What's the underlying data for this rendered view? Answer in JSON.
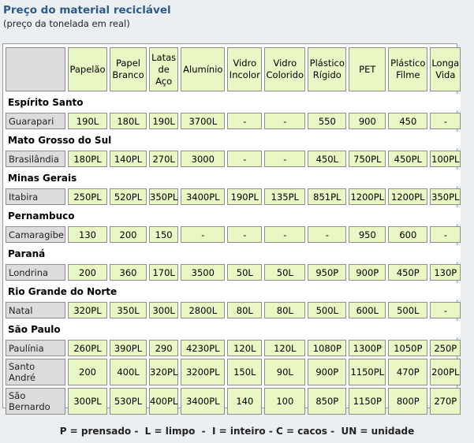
{
  "title": "Preço do material reciclável",
  "subtitle": "(preço da tonelada em real)",
  "columns": [
    "",
    "Papelão",
    "Papel\nBranco",
    "Latas\nde\nAço",
    "Alumínio",
    "Vidro\nIncolor",
    "Vidro\nColorido",
    "Plástico\nRígido",
    "PET",
    "Plástico\nFilme",
    "Longa\nVida"
  ],
  "groups": [
    {
      "state": "Espírito Santo",
      "rows": [
        {
          "city": "Guarapari",
          "values": [
            "190L",
            "180L",
            "190L",
            "3700L",
            "-",
            "-",
            "550",
            "900",
            "450",
            "-"
          ]
        }
      ]
    },
    {
      "state": "Mato Grosso do Sul",
      "rows": [
        {
          "city": "Brasilândia",
          "values": [
            "180PL",
            "140PL",
            "270L",
            "3000",
            "-",
            "-",
            "450L",
            "750PL",
            "450PL",
            "100PL"
          ]
        }
      ]
    },
    {
      "state": "Minas Gerais",
      "rows": [
        {
          "city": "Itabira",
          "values": [
            "250PL",
            "520PL",
            "350PL",
            "3400PL",
            "190PL",
            "135PL",
            "851PL",
            "1200PL",
            "1200PL",
            "350PL"
          ]
        }
      ]
    },
    {
      "state": "Pernambuco",
      "rows": [
        {
          "city": "Camaragibe",
          "values": [
            "130",
            "200",
            "150",
            "-",
            "-",
            "-",
            "-",
            "950",
            "600",
            "-"
          ]
        }
      ]
    },
    {
      "state": "Paraná",
      "rows": [
        {
          "city": "Londrina",
          "values": [
            "200",
            "360",
            "170L",
            "3500",
            "50L",
            "50L",
            "950P",
            "900P",
            "450P",
            "130P"
          ]
        }
      ]
    },
    {
      "state": "Rio Grande do Norte",
      "rows": [
        {
          "city": "Natal",
          "values": [
            "320PL",
            "350L",
            "300L",
            "2800L",
            "80L",
            "80L",
            "500L",
            "600L",
            "500L",
            "-"
          ]
        }
      ]
    },
    {
      "state": "São Paulo",
      "rows": [
        {
          "city": "Paulínia",
          "values": [
            "260PL",
            "390PL",
            "290",
            "4230PL",
            "120L",
            "120L",
            "1080P",
            "1300P",
            "1050P",
            "250P"
          ]
        },
        {
          "city": "Santo\nAndré",
          "values": [
            "200",
            "400L",
            "320PL",
            "3200PL",
            "150L",
            "90L",
            "900P",
            "1150PL",
            "470P",
            "200PL"
          ]
        },
        {
          "city": "São\nBernardo",
          "values": [
            "300PL",
            "530PL",
            "400PL",
            "3400PL",
            "140",
            "100",
            "850P",
            "1150P",
            "800P",
            "270P"
          ]
        }
      ]
    }
  ],
  "legend": "P = prensado -  L = limpo  -  I = inteiro - C = cacos -  UN = unidade"
}
